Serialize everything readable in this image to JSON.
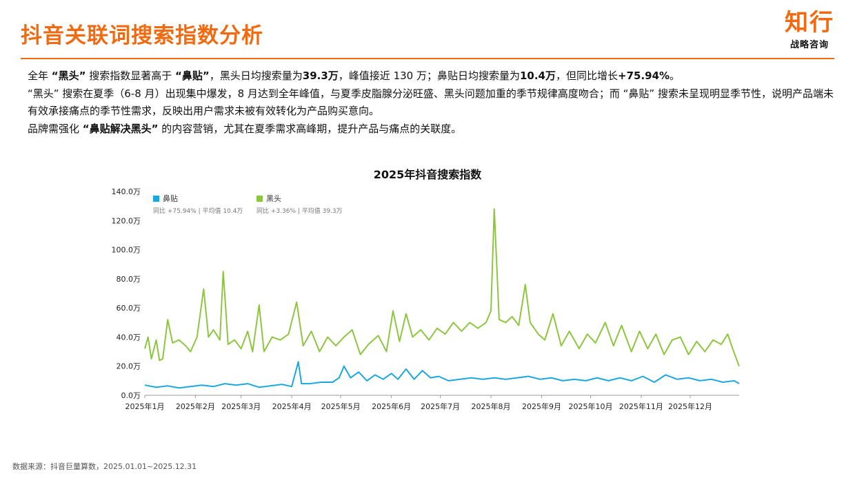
{
  "header": {
    "title": "抖音关联词搜索指数分析",
    "logo_main": "知行",
    "logo_sub": "战略咨询"
  },
  "body": {
    "p1": [
      {
        "t": "全年 ",
        "b": false
      },
      {
        "t": "“黑头”",
        "b": true
      },
      {
        "t": " 搜索指数显著高于 ",
        "b": false
      },
      {
        "t": "“鼻贴”",
        "b": true
      },
      {
        "t": "，黑头日均搜索量为",
        "b": false
      },
      {
        "t": "39.3万",
        "b": true
      },
      {
        "t": "，峰值接近 130 万；鼻贴日均搜索量为",
        "b": false
      },
      {
        "t": "10.4万",
        "b": true
      },
      {
        "t": "，但同比增长",
        "b": false
      },
      {
        "t": "+75.94%",
        "b": true
      },
      {
        "t": "。",
        "b": false
      }
    ],
    "p2": [
      {
        "t": "“黑头” 搜索在夏季（6-8 月）出现集中爆发，8 月达到全年峰值，与夏季皮脂腺分泌旺盛、黑头问题加重的季节规律高度吻合；而 “鼻贴” 搜索未呈现明显季节性，说明产品端未有效承接痛点的季节性需求，反映出用户需求未被有效转化为产品购买意向。",
        "b": false
      }
    ],
    "p3": [
      {
        "t": "品牌需强化 ",
        "b": false
      },
      {
        "t": "“鼻贴解决黑头”",
        "b": true
      },
      {
        "t": " 的内容营销，尤其在夏季需求高峰期，提升产品与痛点的关联度。",
        "b": false
      }
    ]
  },
  "chart_data": {
    "type": "line",
    "title": "2025年抖音搜索指数",
    "y_unit": "万",
    "ylim": [
      0,
      140
    ],
    "y_ticks": [
      "0.0万",
      "20.0万",
      "40.0万",
      "60.0万",
      "80.0万",
      "100.0万",
      "120.0万",
      "140.0万"
    ],
    "x_ticks": [
      "2025年1月",
      "2025年2月",
      "2025年3月",
      "2025年4月",
      "2025年5月",
      "2025年6月",
      "2025年7月",
      "2025年8月",
      "2025年9月",
      "2025年10月",
      "2025年11月",
      "2025年12月"
    ],
    "x_range": [
      "2025-01-01",
      "2025-12-31"
    ],
    "legend_position": "top-left",
    "grid": false,
    "series": [
      {
        "name": "鼻贴",
        "color": "#1aa7e0",
        "note": "同比 +75.94% | 平均值 10.4万",
        "points": [
          [
            "2025-01-01",
            7
          ],
          [
            "2025-01-08",
            5.5
          ],
          [
            "2025-01-15",
            6.5
          ],
          [
            "2025-01-22",
            5
          ],
          [
            "2025-01-29",
            6
          ],
          [
            "2025-02-05",
            7
          ],
          [
            "2025-02-12",
            6
          ],
          [
            "2025-02-19",
            8
          ],
          [
            "2025-02-26",
            7
          ],
          [
            "2025-03-05",
            8
          ],
          [
            "2025-03-12",
            5.5
          ],
          [
            "2025-03-19",
            6.5
          ],
          [
            "2025-03-26",
            7.5
          ],
          [
            "2025-04-01",
            6
          ],
          [
            "2025-04-05",
            23
          ],
          [
            "2025-04-07",
            8
          ],
          [
            "2025-04-12",
            8
          ],
          [
            "2025-04-19",
            9
          ],
          [
            "2025-04-26",
            9
          ],
          [
            "2025-04-30",
            12
          ],
          [
            "2025-05-03",
            20
          ],
          [
            "2025-05-07",
            12
          ],
          [
            "2025-05-12",
            16
          ],
          [
            "2025-05-17",
            10
          ],
          [
            "2025-05-22",
            14
          ],
          [
            "2025-05-27",
            11
          ],
          [
            "2025-06-01",
            15
          ],
          [
            "2025-06-05",
            11
          ],
          [
            "2025-06-10",
            18
          ],
          [
            "2025-06-15",
            11
          ],
          [
            "2025-06-20",
            17
          ],
          [
            "2025-06-25",
            12
          ],
          [
            "2025-06-30",
            13
          ],
          [
            "2025-07-06",
            10
          ],
          [
            "2025-07-13",
            11
          ],
          [
            "2025-07-20",
            12
          ],
          [
            "2025-07-27",
            11
          ],
          [
            "2025-08-03",
            12
          ],
          [
            "2025-08-10",
            11
          ],
          [
            "2025-08-17",
            12
          ],
          [
            "2025-08-24",
            13
          ],
          [
            "2025-08-31",
            11
          ],
          [
            "2025-09-07",
            12
          ],
          [
            "2025-09-14",
            10
          ],
          [
            "2025-09-21",
            11
          ],
          [
            "2025-09-28",
            10
          ],
          [
            "2025-10-05",
            12
          ],
          [
            "2025-10-12",
            10
          ],
          [
            "2025-10-19",
            12
          ],
          [
            "2025-10-26",
            10
          ],
          [
            "2025-11-02",
            13
          ],
          [
            "2025-11-09",
            9
          ],
          [
            "2025-11-16",
            14
          ],
          [
            "2025-11-23",
            11
          ],
          [
            "2025-11-30",
            12
          ],
          [
            "2025-12-07",
            10
          ],
          [
            "2025-12-14",
            11
          ],
          [
            "2025-12-21",
            9
          ],
          [
            "2025-12-28",
            10
          ],
          [
            "2025-12-31",
            8
          ]
        ]
      },
      {
        "name": "黑头",
        "color": "#8cc63f",
        "note": "同比 +3.36% | 平均值 39.3万",
        "points": [
          [
            "2025-01-01",
            32
          ],
          [
            "2025-01-03",
            40
          ],
          [
            "2025-01-05",
            25
          ],
          [
            "2025-01-08",
            38
          ],
          [
            "2025-01-10",
            24
          ],
          [
            "2025-01-12",
            25
          ],
          [
            "2025-01-15",
            52
          ],
          [
            "2025-01-18",
            36
          ],
          [
            "2025-01-22",
            38
          ],
          [
            "2025-01-26",
            34
          ],
          [
            "2025-01-29",
            30
          ],
          [
            "2025-02-02",
            40
          ],
          [
            "2025-02-06",
            73
          ],
          [
            "2025-02-09",
            40
          ],
          [
            "2025-02-12",
            45
          ],
          [
            "2025-02-16",
            38
          ],
          [
            "2025-02-18",
            85
          ],
          [
            "2025-02-21",
            35
          ],
          [
            "2025-02-25",
            38
          ],
          [
            "2025-03-01",
            32
          ],
          [
            "2025-03-05",
            44
          ],
          [
            "2025-03-08",
            30
          ],
          [
            "2025-03-12",
            62
          ],
          [
            "2025-03-15",
            30
          ],
          [
            "2025-03-20",
            40
          ],
          [
            "2025-03-25",
            38
          ],
          [
            "2025-03-30",
            42
          ],
          [
            "2025-04-04",
            64
          ],
          [
            "2025-04-08",
            34
          ],
          [
            "2025-04-13",
            44
          ],
          [
            "2025-04-18",
            30
          ],
          [
            "2025-04-23",
            40
          ],
          [
            "2025-04-28",
            34
          ],
          [
            "2025-05-03",
            40
          ],
          [
            "2025-05-08",
            45
          ],
          [
            "2025-05-13",
            28
          ],
          [
            "2025-05-18",
            35
          ],
          [
            "2025-05-24",
            41
          ],
          [
            "2025-05-29",
            30
          ],
          [
            "2025-06-02",
            58
          ],
          [
            "2025-06-06",
            37
          ],
          [
            "2025-06-10",
            56
          ],
          [
            "2025-06-14",
            40
          ],
          [
            "2025-06-19",
            45
          ],
          [
            "2025-06-24",
            38
          ],
          [
            "2025-06-29",
            46
          ],
          [
            "2025-07-04",
            42
          ],
          [
            "2025-07-09",
            50
          ],
          [
            "2025-07-14",
            44
          ],
          [
            "2025-07-19",
            50
          ],
          [
            "2025-07-24",
            46
          ],
          [
            "2025-07-29",
            50
          ],
          [
            "2025-08-01",
            58
          ],
          [
            "2025-08-03",
            128
          ],
          [
            "2025-08-06",
            52
          ],
          [
            "2025-08-10",
            50
          ],
          [
            "2025-08-14",
            54
          ],
          [
            "2025-08-18",
            48
          ],
          [
            "2025-08-22",
            76
          ],
          [
            "2025-08-25",
            50
          ],
          [
            "2025-08-30",
            42
          ],
          [
            "2025-09-03",
            38
          ],
          [
            "2025-09-08",
            56
          ],
          [
            "2025-09-13",
            34
          ],
          [
            "2025-09-18",
            44
          ],
          [
            "2025-09-24",
            32
          ],
          [
            "2025-09-29",
            42
          ],
          [
            "2025-10-04",
            36
          ],
          [
            "2025-10-10",
            50
          ],
          [
            "2025-10-15",
            34
          ],
          [
            "2025-10-20",
            48
          ],
          [
            "2025-10-26",
            30
          ],
          [
            "2025-10-31",
            44
          ],
          [
            "2025-11-05",
            32
          ],
          [
            "2025-11-10",
            42
          ],
          [
            "2025-11-15",
            28
          ],
          [
            "2025-11-20",
            38
          ],
          [
            "2025-11-25",
            40
          ],
          [
            "2025-11-30",
            28
          ],
          [
            "2025-12-05",
            37
          ],
          [
            "2025-12-10",
            30
          ],
          [
            "2025-12-15",
            38
          ],
          [
            "2025-12-20",
            35
          ],
          [
            "2025-12-24",
            42
          ],
          [
            "2025-12-27",
            32
          ],
          [
            "2025-12-31",
            20
          ]
        ]
      }
    ]
  },
  "footer": {
    "source": "数据来源：抖音巨量算数，2025.01.01~2025.12.31"
  }
}
